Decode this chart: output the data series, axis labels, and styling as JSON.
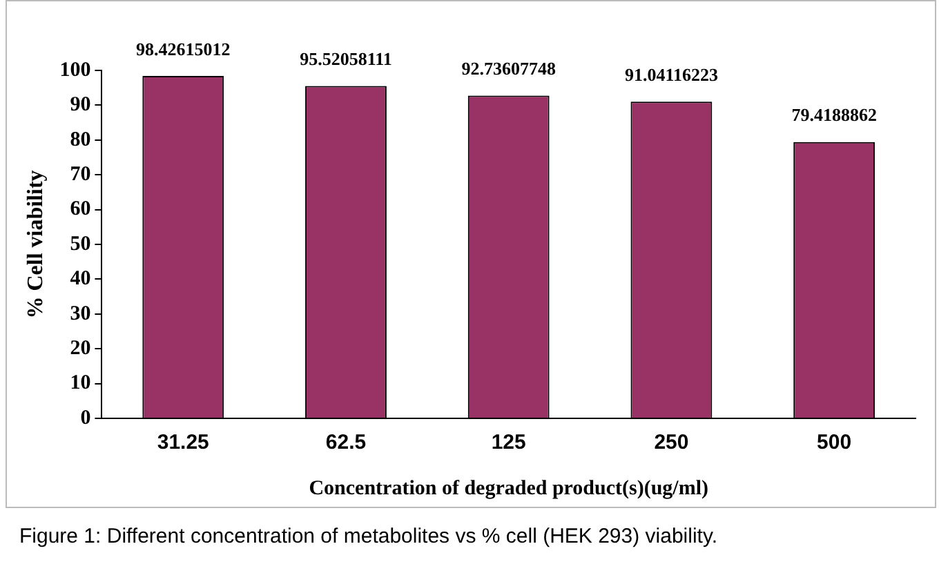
{
  "chart_data": {
    "type": "bar",
    "categories": [
      "31.25",
      "62.5",
      "125",
      "250",
      "500"
    ],
    "values": [
      98.42615012,
      95.52058111,
      92.73607748,
      91.04116223,
      79.4188862
    ],
    "color": "#993366",
    "data_labels": true,
    "ylim": [
      0,
      100
    ],
    "yticks": [
      0,
      10,
      20,
      30,
      40,
      50,
      60,
      70,
      80,
      90,
      100
    ],
    "grid": false,
    "legend": false,
    "xlabel": "Concentration of degraded product(s)(ug/ml)",
    "ylabel": "% Cell viability",
    "annotations": [
      "Figure 1: Different concentration of metabolites vs % cell (HEK 293) viability."
    ]
  }
}
